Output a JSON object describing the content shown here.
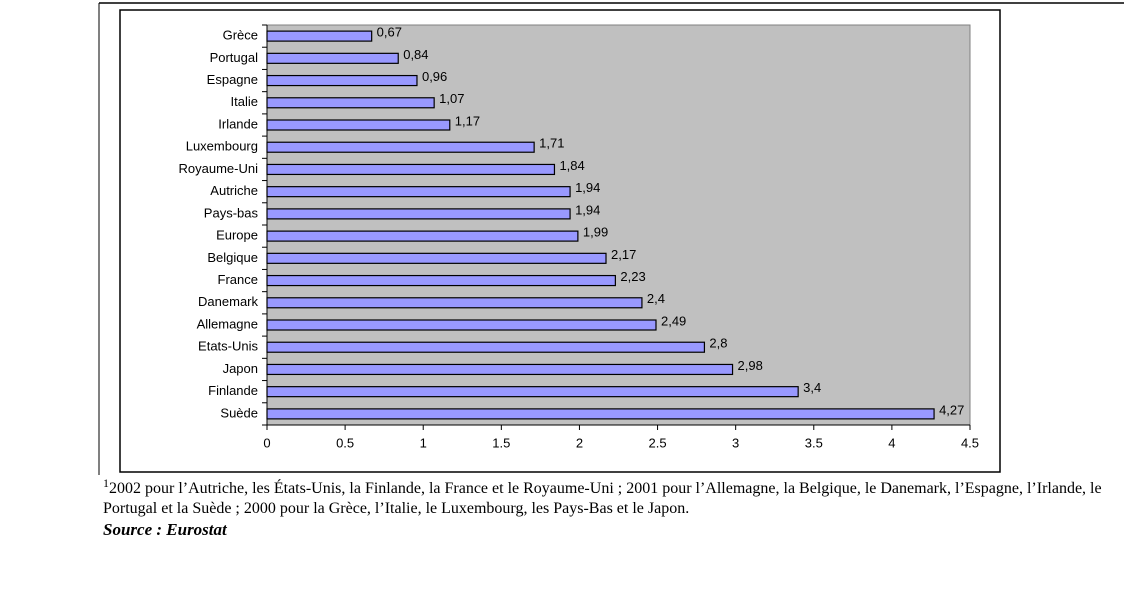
{
  "chart_data": {
    "type": "bar",
    "orientation": "horizontal",
    "categories": [
      "Grèce",
      "Portugal",
      "Espagne",
      "Italie",
      "Irlande",
      "Luxembourg",
      "Royaume-Uni",
      "Autriche",
      "Pays-bas",
      "Europe",
      "Belgique",
      "France",
      "Danemark",
      "Allemagne",
      "Etats-Unis",
      "Japon",
      "Finlande",
      "Suède"
    ],
    "values": [
      0.67,
      0.84,
      0.96,
      1.07,
      1.17,
      1.71,
      1.84,
      1.94,
      1.94,
      1.99,
      2.17,
      2.23,
      2.4,
      2.49,
      2.8,
      2.98,
      3.4,
      4.27
    ],
    "value_labels": [
      "0,67",
      "0,84",
      "0,96",
      "1,07",
      "1,17",
      "1,71",
      "1,84",
      "1,94",
      "1,94",
      "1,99",
      "2,17",
      "2,23",
      "2,4",
      "2,49",
      "2,8",
      "2,98",
      "3,4",
      "4,27"
    ],
    "color": "#9999ff",
    "plot_background": "#c0c0c0",
    "xlim": [
      0,
      4.5
    ],
    "xticks": [
      0,
      0.5,
      1,
      1.5,
      2,
      2.5,
      3,
      3.5,
      4,
      4.5
    ],
    "grid": false
  },
  "note_marker": "1",
  "note": "2002 pour l’Autriche, les États-Unis, la Finlande, la France et le Royaume-Uni ; 2001 pour l’Allemagne, la Belgique, le Danemark, l’Espagne, l’Irlande, le Portugal et la Suède ; 2000 pour la Grèce, l’Italie, le Luxembourg, les Pays-Bas et le Japon.",
  "source": "Source : Eurostat"
}
